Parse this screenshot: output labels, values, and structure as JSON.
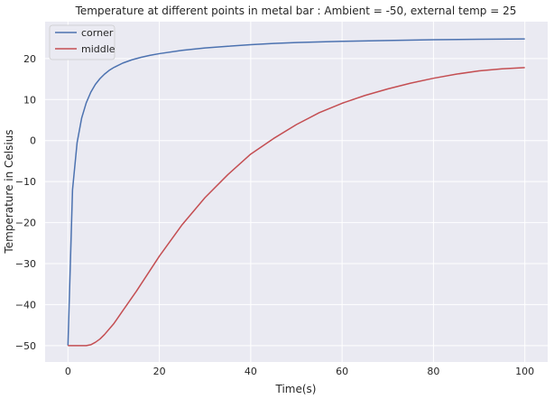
{
  "chart_data": {
    "type": "line",
    "title": "Temperature at different points in metal bar : Ambient = -50, external temp = 25",
    "xlabel": "Time(s)",
    "ylabel": "Temperature in Celsius",
    "xlim": [
      -5,
      105
    ],
    "ylim": [
      -54,
      29
    ],
    "xticks": [
      0,
      20,
      40,
      60,
      80,
      100
    ],
    "yticks": [
      -50,
      -40,
      -30,
      -20,
      -10,
      0,
      10,
      20
    ],
    "grid": true,
    "legend": "top-left",
    "background": "#eaeaf2",
    "series": [
      {
        "name": "corner",
        "color": "#4c72b0",
        "x": [
          0,
          1,
          2,
          3,
          4,
          5,
          6,
          7,
          8,
          9,
          10,
          12,
          14,
          16,
          18,
          20,
          25,
          30,
          35,
          40,
          45,
          50,
          60,
          70,
          80,
          90,
          100
        ],
        "y": [
          -50,
          -12,
          -0.5,
          5.5,
          9.2,
          11.8,
          13.7,
          15.1,
          16.2,
          17.1,
          17.8,
          18.9,
          19.7,
          20.3,
          20.8,
          21.2,
          22.0,
          22.6,
          23.0,
          23.4,
          23.7,
          23.9,
          24.2,
          24.4,
          24.6,
          24.7,
          24.8
        ]
      },
      {
        "name": "middle",
        "color": "#c44e52",
        "x": [
          0,
          2,
          4,
          5,
          6,
          7,
          8,
          10,
          12,
          15,
          20,
          25,
          30,
          35,
          40,
          45,
          50,
          55,
          60,
          65,
          70,
          75,
          80,
          85,
          90,
          95,
          100
        ],
        "y": [
          -50,
          -50,
          -50,
          -49.8,
          -49.2,
          -48.4,
          -47.3,
          -44.7,
          -41.5,
          -36.7,
          -28.2,
          -20.5,
          -13.9,
          -8.3,
          -3.3,
          0.5,
          3.9,
          6.8,
          9.1,
          11.0,
          12.6,
          14.0,
          15.2,
          16.2,
          17.0,
          17.5,
          17.8
        ]
      }
    ]
  }
}
